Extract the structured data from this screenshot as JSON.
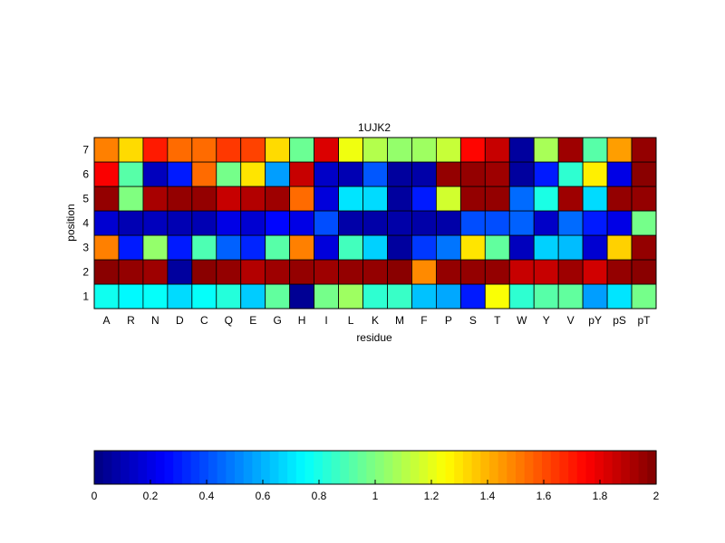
{
  "chart_data": [
    {
      "type": "heatmap",
      "title": "1UJK2",
      "xlabel": "residue",
      "ylabel": "position",
      "x": [
        "A",
        "R",
        "N",
        "D",
        "C",
        "Q",
        "E",
        "G",
        "H",
        "I",
        "L",
        "K",
        "M",
        "F",
        "P",
        "S",
        "T",
        "W",
        "Y",
        "V",
        "pY",
        "pS",
        "pT"
      ],
      "y": [
        "1",
        "2",
        "3",
        "4",
        "5",
        "6",
        "7"
      ],
      "clim": [
        0,
        2
      ],
      "colormap": "jet",
      "values": [
        [
          0.78,
          0.74,
          0.76,
          0.68,
          0.76,
          0.82,
          0.65,
          0.94,
          0.04,
          0.98,
          1.06,
          0.84,
          0.86,
          0.63,
          0.58,
          0.3,
          1.24,
          0.84,
          0.92,
          0.94,
          0.56,
          0.7,
          0.98
        ],
        [
          1.98,
          1.96,
          1.94,
          0.06,
          1.98,
          1.96,
          1.9,
          1.94,
          1.96,
          1.94,
          1.96,
          1.96,
          1.98,
          1.48,
          1.96,
          1.96,
          1.96,
          1.86,
          1.86,
          1.94,
          1.84,
          1.96,
          1.98
        ],
        [
          1.5,
          0.3,
          1.04,
          0.3,
          0.9,
          0.44,
          0.32,
          0.92,
          1.5,
          0.18,
          0.88,
          0.66,
          0.06,
          0.36,
          0.48,
          1.3,
          0.94,
          0.12,
          0.66,
          0.62,
          0.16,
          1.34,
          1.96
        ],
        [
          0.16,
          0.1,
          0.12,
          0.1,
          0.1,
          0.2,
          0.16,
          0.26,
          0.2,
          0.4,
          0.08,
          0.08,
          0.08,
          0.08,
          0.08,
          0.4,
          0.4,
          0.44,
          0.14,
          0.46,
          0.3,
          0.2,
          0.98
        ],
        [
          1.96,
          1.0,
          1.92,
          1.96,
          1.96,
          1.86,
          1.9,
          1.94,
          1.54,
          0.18,
          0.7,
          0.68,
          0.06,
          0.3,
          1.16,
          1.96,
          1.96,
          0.46,
          0.8,
          1.94,
          0.68,
          1.96,
          1.96
        ],
        [
          1.76,
          0.92,
          0.12,
          0.3,
          1.54,
          0.98,
          1.3,
          0.56,
          1.86,
          0.14,
          0.1,
          0.42,
          0.06,
          0.08,
          1.96,
          1.96,
          1.94,
          0.06,
          0.3,
          0.84,
          1.28,
          0.2,
          1.98
        ],
        [
          1.5,
          1.32,
          1.7,
          1.54,
          1.54,
          1.64,
          1.62,
          1.32,
          0.96,
          1.82,
          1.22,
          1.1,
          1.04,
          1.06,
          1.14,
          1.74,
          1.86,
          0.06,
          1.08,
          1.94,
          0.92,
          1.44,
          1.96
        ]
      ]
    },
    {
      "type": "colorbar",
      "orientation": "horizontal",
      "range": [
        0,
        2
      ],
      "tick_labels": [
        "0",
        "0.2",
        "0.4",
        "0.6",
        "0.8",
        "1",
        "1.2",
        "1.4",
        "1.6",
        "1.8",
        "2"
      ]
    }
  ]
}
